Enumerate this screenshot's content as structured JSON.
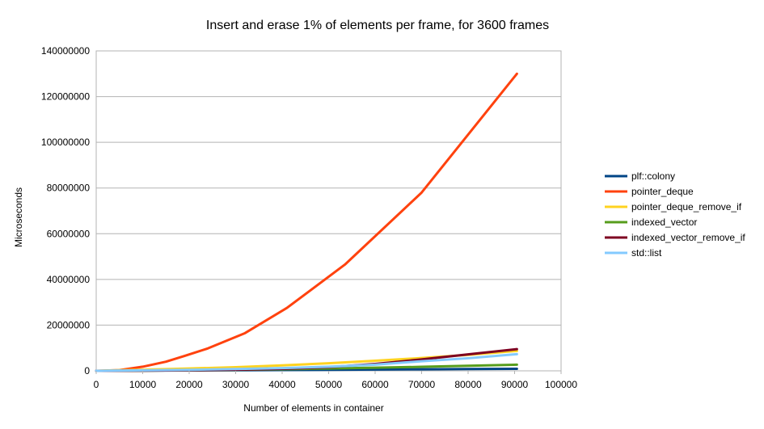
{
  "chart_data": {
    "type": "line",
    "title": "Insert and erase 1% of elements per frame, for 3600 frames",
    "xlabel": "Number of elements in container",
    "ylabel": "Microseconds",
    "xlim": [
      0,
      100000
    ],
    "ylim": [
      0,
      140000000
    ],
    "x_ticks": [
      0,
      10000,
      20000,
      30000,
      40000,
      50000,
      60000,
      70000,
      80000,
      90000,
      100000
    ],
    "y_ticks": [
      0,
      20000000,
      40000000,
      60000000,
      80000000,
      100000000,
      120000000,
      140000000
    ],
    "x_tick_labels": [
      "0",
      "10000",
      "20000",
      "30000",
      "40000",
      "50000",
      "60000",
      "70000",
      "80000",
      "90000",
      "100000"
    ],
    "y_tick_labels": [
      "0",
      "20000000",
      "40000000",
      "60000000",
      "80000000",
      "100000000",
      "120000000",
      "140000000"
    ],
    "grid": true,
    "legend_position": "right",
    "series": [
      {
        "name": "plf::colony",
        "color": "#004586",
        "points": [
          [
            0,
            0
          ],
          [
            10000,
            80000
          ],
          [
            20000,
            180000
          ],
          [
            30000,
            260000
          ],
          [
            40000,
            360000
          ],
          [
            50000,
            460000
          ],
          [
            60000,
            560000
          ],
          [
            70000,
            680000
          ],
          [
            80000,
            790000
          ],
          [
            90500,
            900000
          ]
        ]
      },
      {
        "name": "pointer_deque",
        "color": "#ff420e",
        "points": [
          [
            0,
            0
          ],
          [
            5000,
            300000
          ],
          [
            10000,
            1800000
          ],
          [
            15000,
            4000000
          ],
          [
            19000,
            6500000
          ],
          [
            24000,
            9800000
          ],
          [
            32000,
            16500000
          ],
          [
            41000,
            27500000
          ],
          [
            53500,
            46500000
          ],
          [
            70000,
            78000000
          ],
          [
            90500,
            130000000
          ]
        ]
      },
      {
        "name": "pointer_deque_remove_if",
        "color": "#ffd320",
        "points": [
          [
            0,
            0
          ],
          [
            5000,
            250000
          ],
          [
            10000,
            500000
          ],
          [
            20000,
            1000000
          ],
          [
            30000,
            1600000
          ],
          [
            40000,
            2400000
          ],
          [
            50000,
            3300000
          ],
          [
            60000,
            4400000
          ],
          [
            70000,
            5600000
          ],
          [
            80000,
            7000000
          ],
          [
            90500,
            8700000
          ]
        ]
      },
      {
        "name": "indexed_vector",
        "color": "#579d1c",
        "points": [
          [
            0,
            0
          ],
          [
            10000,
            100000
          ],
          [
            20000,
            250000
          ],
          [
            30000,
            450000
          ],
          [
            40000,
            700000
          ],
          [
            50000,
            1000000
          ],
          [
            60000,
            1350000
          ],
          [
            70000,
            1750000
          ],
          [
            80000,
            2200000
          ],
          [
            90500,
            2700000
          ]
        ]
      },
      {
        "name": "indexed_vector_remove_if",
        "color": "#7e0021",
        "points": [
          [
            0,
            0
          ],
          [
            10000,
            80000
          ],
          [
            20000,
            250000
          ],
          [
            30000,
            500000
          ],
          [
            40000,
            900000
          ],
          [
            50000,
            1600000
          ],
          [
            60000,
            3000000
          ],
          [
            70000,
            5000000
          ],
          [
            80000,
            7200000
          ],
          [
            90500,
            9500000
          ]
        ]
      },
      {
        "name": "std::list",
        "color": "#83caff",
        "points": [
          [
            0,
            0
          ],
          [
            10000,
            200000
          ],
          [
            20000,
            450000
          ],
          [
            30000,
            800000
          ],
          [
            40000,
            1200000
          ],
          [
            50000,
            1800000
          ],
          [
            60000,
            2700000
          ],
          [
            70000,
            4200000
          ],
          [
            80000,
            5500000
          ],
          [
            90500,
            7300000
          ]
        ]
      }
    ]
  }
}
